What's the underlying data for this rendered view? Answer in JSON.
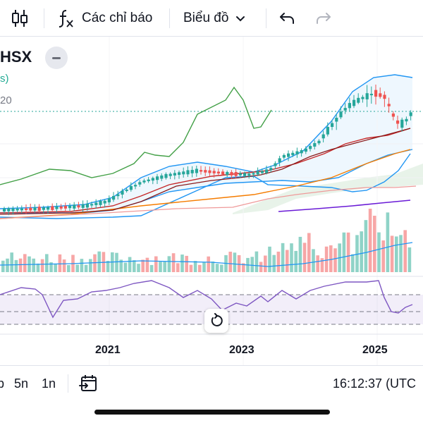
{
  "toolbar": {
    "indicators_label": "Các chỉ báo",
    "chart_type_label": "Biểu đồ"
  },
  "symbol": {
    "name": "HSX",
    "sub": "s)",
    "value": "20"
  },
  "time_axis": [
    "2021",
    "2023",
    "2025"
  ],
  "bottom_bar": {
    "range_partial": "b",
    "range_5y": "5n",
    "range_1y": "1n",
    "clock": "16:12:37 (UTC"
  },
  "icons": {
    "candles": "candlestick-icon",
    "indicators": "function-fx-icon",
    "chevron": "chevron-down-icon",
    "undo": "undo-icon",
    "redo": "redo-icon",
    "collapse": "minus-icon",
    "reset": "reset-rotate-icon",
    "goto": "goto-date-icon"
  },
  "colors": {
    "up": "#26a69a",
    "down": "#ef5350",
    "rsi": "#7e57c2",
    "ma_green": "#43a047",
    "bb_blue": "#2196f3",
    "ma_red": "#c62828",
    "ma_orange": "#f57c00",
    "ma_purple": "#6a1bd6"
  }
}
